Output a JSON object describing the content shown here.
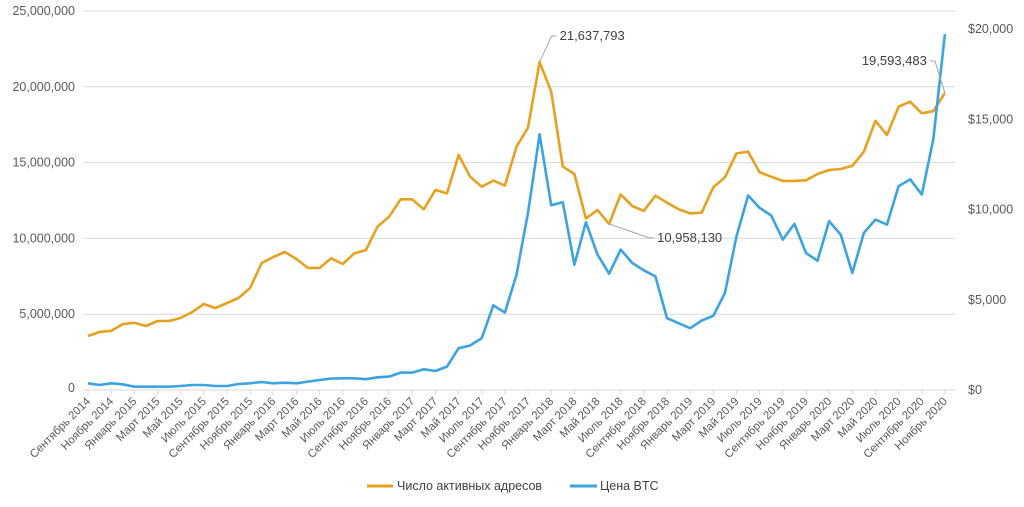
{
  "chart_data": {
    "type": "line",
    "x": [
      "Сентябрь 2014",
      "Октябрь 2014",
      "Ноябрь 2014",
      "Декабрь 2014",
      "Январь 2015",
      "Февраль 2015",
      "Март 2015",
      "Апрель 2015",
      "Май 2015",
      "Июнь 2015",
      "Июль 2015",
      "Август 2015",
      "Сентябрь 2015",
      "Октябрь 2015",
      "Ноябрь 2015",
      "Декабрь 2015",
      "Январь 2016",
      "Февраль 2016",
      "Март 2016",
      "Апрель 2016",
      "Май 2016",
      "Июнь 2016",
      "Июль 2016",
      "Август 2016",
      "Сентябрь 2016",
      "Октябрь 2016",
      "Ноябрь 2016",
      "Декабрь 2016",
      "Январь 2017",
      "Февраль 2017",
      "Март 2017",
      "Апрель 2017",
      "Май 2017",
      "Июнь 2017",
      "Июль 2017",
      "Август 2017",
      "Сентябрь 2017",
      "Октябрь 2017",
      "Ноябрь 2017",
      "Декабрь 2017",
      "Январь 2018",
      "Февраль 2018",
      "Март 2018",
      "Апрель 2018",
      "Май 2018",
      "Июнь 2018",
      "Июль 2018",
      "Август 2018",
      "Сентябрь 2018",
      "Октябрь 2018",
      "Ноябрь 2018",
      "Декабрь 2018",
      "Январь 2019",
      "Февраль 2019",
      "Март 2019",
      "Апрель 2019",
      "Май 2019",
      "Июнь 2019",
      "Июль 2019",
      "Август 2019",
      "Сентябрь 2019",
      "Октябрь 2019",
      "Ноябрь 2019",
      "Декабрь 2019",
      "Январь 2020",
      "Февраль 2020",
      "Март 2020",
      "Апрель 2020",
      "Май 2020",
      "Июнь 2020",
      "Июль 2020",
      "Август 2020",
      "Сентябрь 2020",
      "Октябрь 2020",
      "Ноябрь 2020"
    ],
    "x_tick_labels": [
      "Сентябрь 2014",
      "Ноябрь 2014",
      "Январь 2015",
      "Март 2015",
      "Май 2015",
      "Июль 2015",
      "Сентябрь 2015",
      "Ноябрь 2015",
      "Январь 2016",
      "Март 2016",
      "Май 2016",
      "Июль 2016",
      "Сентябрь 2016",
      "Ноябрь 2016",
      "Январь 2017",
      "Март 2017",
      "Май 2017",
      "Июль 2017",
      "Сентябрь 2017",
      "Ноябрь 2017",
      "Январь 2018",
      "Март 2018",
      "Май 2018",
      "Июль 2018",
      "Сентябрь 2018",
      "Ноябрь 2018",
      "Январь 2019",
      "Март 2019",
      "Май 2019",
      "Июль 2019",
      "Сентябрь 2019",
      "Ноябрь 2019",
      "Январь 2020",
      "Март 2020",
      "Май 2020",
      "Июль 2020",
      "Сентябрь 2020",
      "Ноябрь 2020"
    ],
    "series": [
      {
        "name": "Число активных адресов",
        "axis": "left",
        "color": "#E8A020",
        "values": [
          3560000,
          3830000,
          3900000,
          4350000,
          4430000,
          4220000,
          4550000,
          4550000,
          4750000,
          5140000,
          5670000,
          5400000,
          5740000,
          6070000,
          6730000,
          8380000,
          8770000,
          9100000,
          8640000,
          8050000,
          8050000,
          8690000,
          8310000,
          9020000,
          9230000,
          10770000,
          11430000,
          12580000,
          12580000,
          11920000,
          13190000,
          12970000,
          15500000,
          14070000,
          13410000,
          13810000,
          13480000,
          16050000,
          17300000,
          21637793,
          19680000,
          14730000,
          14250000,
          11320000,
          11870000,
          10958130,
          12900000,
          12140000,
          11810000,
          12820000,
          12360000,
          11920000,
          11650000,
          11700000,
          13370000,
          14030000,
          15610000,
          15720000,
          14360000,
          14070000,
          13790000,
          13790000,
          13830000,
          14250000,
          14510000,
          14580000,
          14780000,
          15720000,
          17760000,
          16820000,
          18690000,
          19020000,
          18250000,
          18400000,
          19593483
        ]
      },
      {
        "name": "Цена BTC",
        "axis": "right",
        "color": "#3BA3E0",
        "values": [
          370,
          278,
          370,
          315,
          185,
          185,
          185,
          185,
          222,
          278,
          278,
          222,
          222,
          333,
          370,
          444,
          370,
          407,
          370,
          463,
          555,
          630,
          648,
          648,
          600,
          704,
          741,
          963,
          963,
          1148,
          1055,
          1296,
          2315,
          2463,
          2870,
          4685,
          4296,
          6389,
          9815,
          14167,
          10241,
          10407,
          6944,
          9300,
          7500,
          6444,
          7778,
          7037,
          6630,
          6296,
          3981,
          3704,
          3426,
          3852,
          4111,
          5370,
          8519,
          10778,
          10093,
          9667,
          8333,
          9204,
          7593,
          7167,
          9352,
          8611,
          6481,
          8704,
          9444,
          9167,
          11296,
          11667,
          10833,
          13889,
          19722
        ]
      }
    ],
    "y_left": {
      "range": [
        0,
        25000000
      ],
      "ticks": [
        "0",
        "5,000,000",
        "10,000,000",
        "15,000,000",
        "20,000,000",
        "25,000,000"
      ]
    },
    "y_right": {
      "range": [
        0,
        21000
      ],
      "ticks": [
        "$0",
        "$5,000",
        "$10,000",
        "$15,000",
        "$20,000"
      ]
    },
    "grid": true,
    "legend_position": "bottom",
    "annotations": [
      {
        "text": "21,637,793",
        "series": 0,
        "index": 39
      },
      {
        "text": "10,958,130",
        "series": 0,
        "index": 45
      },
      {
        "text": "19,593,483",
        "series": 0,
        "index": 74
      }
    ]
  },
  "colors": {
    "grid": "#D9D9D9",
    "axis_text": "#595959"
  }
}
